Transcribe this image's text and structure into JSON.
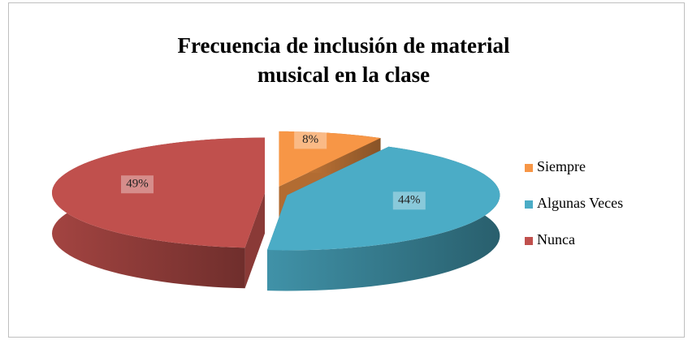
{
  "chart_data": {
    "type": "pie",
    "title": "Frecuencia de inclusión de material musical en la clase",
    "categories": [
      "Siempre",
      "Algunas Veces",
      "Nunca"
    ],
    "values": [
      8,
      44,
      49
    ],
    "value_labels": [
      "8%",
      "44%",
      "49%"
    ],
    "colors": [
      "#f79646",
      "#4bacc6",
      "#c0504d"
    ],
    "legend": "right"
  }
}
